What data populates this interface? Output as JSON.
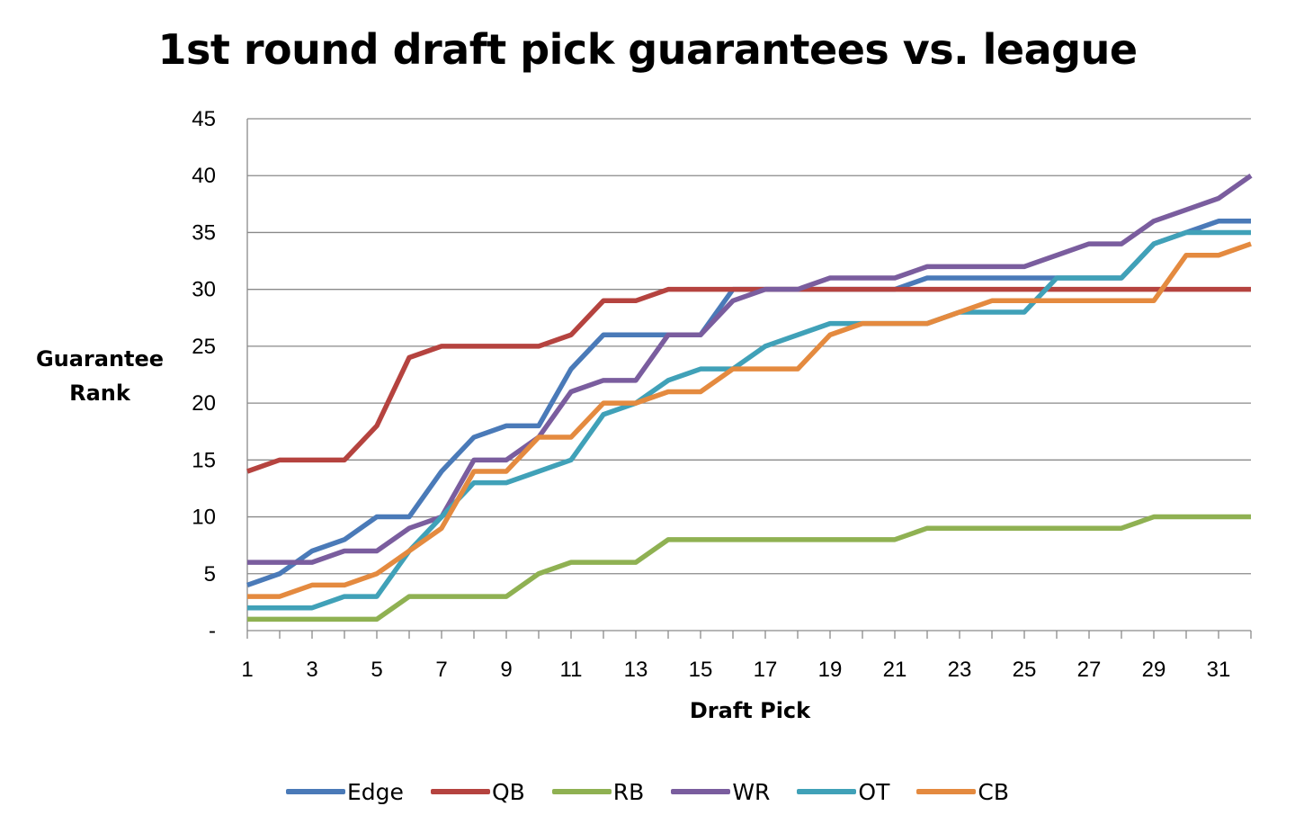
{
  "chart_data": {
    "type": "line",
    "title": "1st round draft pick guarantees vs. league",
    "xlabel": "Draft Pick",
    "ylabel": "Guarantee\nRank",
    "ylim": [
      0,
      45
    ],
    "yticks": [
      0,
      5,
      10,
      15,
      20,
      25,
      30,
      35,
      40,
      45
    ],
    "ytick_labels": [
      "-",
      "5",
      "10",
      "15",
      "20",
      "25",
      "30",
      "35",
      "40",
      "45"
    ],
    "x": [
      1,
      2,
      3,
      4,
      5,
      6,
      7,
      8,
      9,
      10,
      11,
      12,
      13,
      14,
      15,
      16,
      17,
      18,
      19,
      20,
      21,
      22,
      23,
      24,
      25,
      26,
      27,
      28,
      29,
      30,
      31,
      32
    ],
    "xtick_labels": [
      "1",
      "3",
      "5",
      "7",
      "9",
      "11",
      "13",
      "15",
      "17",
      "19",
      "21",
      "23",
      "25",
      "27",
      "29",
      "31"
    ],
    "grid": true,
    "legend": "bottom",
    "series": [
      {
        "name": "Edge",
        "color": "#4a7ab8",
        "values": [
          4,
          5,
          7,
          8,
          10,
          10,
          14,
          17,
          18,
          18,
          23,
          26,
          26,
          26,
          26,
          30,
          30,
          30,
          30,
          30,
          30,
          31,
          31,
          31,
          31,
          31,
          31,
          31,
          34,
          35,
          36,
          36
        ]
      },
      {
        "name": "QB",
        "color": "#b5433f",
        "values": [
          14,
          15,
          15,
          15,
          18,
          24,
          25,
          25,
          25,
          25,
          26,
          29,
          29,
          30,
          30,
          30,
          30,
          30,
          30,
          30,
          30,
          30,
          30,
          30,
          30,
          30,
          30,
          30,
          30,
          30,
          30,
          30
        ]
      },
      {
        "name": "RB",
        "color": "#8fb152",
        "values": [
          1,
          1,
          1,
          1,
          1,
          3,
          3,
          3,
          3,
          5,
          6,
          6,
          6,
          8,
          8,
          8,
          8,
          8,
          8,
          8,
          8,
          9,
          9,
          9,
          9,
          9,
          9,
          9,
          10,
          10,
          10,
          10
        ]
      },
      {
        "name": "WR",
        "color": "#7a5d9e",
        "values": [
          6,
          6,
          6,
          7,
          7,
          9,
          10,
          15,
          15,
          17,
          21,
          22,
          22,
          26,
          26,
          29,
          30,
          30,
          31,
          31,
          31,
          32,
          32,
          32,
          32,
          33,
          34,
          34,
          36,
          37,
          38,
          40
        ]
      },
      {
        "name": "OT",
        "color": "#40a1b8",
        "values": [
          2,
          2,
          2,
          3,
          3,
          7,
          10,
          13,
          13,
          14,
          15,
          19,
          20,
          22,
          23,
          23,
          25,
          26,
          27,
          27,
          27,
          27,
          28,
          28,
          28,
          31,
          31,
          31,
          34,
          35,
          35,
          35
        ]
      },
      {
        "name": "CB",
        "color": "#e48a3f",
        "values": [
          3,
          3,
          4,
          4,
          5,
          7,
          9,
          14,
          14,
          17,
          17,
          20,
          20,
          21,
          21,
          23,
          23,
          23,
          26,
          27,
          27,
          27,
          28,
          29,
          29,
          29,
          29,
          29,
          29,
          33,
          33,
          34
        ]
      }
    ]
  }
}
